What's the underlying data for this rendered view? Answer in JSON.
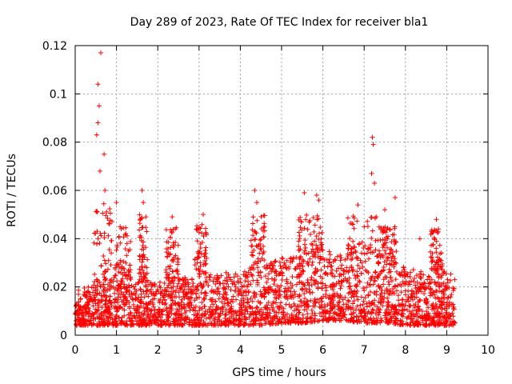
{
  "chart_data": {
    "type": "scatter",
    "title": "Day 289 of 2023, Rate Of TEC Index for receiver bla1",
    "xlabel": "GPS time / hours",
    "ylabel": "ROTI / TECUs",
    "xlim": [
      0,
      10
    ],
    "ylim": [
      0,
      0.12
    ],
    "xticks": [
      0,
      1,
      2,
      3,
      4,
      5,
      6,
      7,
      8,
      9,
      10
    ],
    "yticks": [
      0,
      0.02,
      0.04,
      0.06,
      0.08,
      0.1,
      0.12
    ],
    "xtick_labels": [
      "0",
      "1",
      "2",
      "3",
      "4",
      "5",
      "6",
      "7",
      "8",
      "9",
      "10"
    ],
    "ytick_labels": [
      "0",
      "0.02",
      "0.04",
      "0.06",
      "0.08",
      "0.1",
      "0.12"
    ],
    "grid": true,
    "marker": "plus",
    "color": "#ff0000",
    "envelope": {
      "description": "approximate dense band of ROTI values over time (lower/upper of main cloud)",
      "x": [
        0.0,
        0.5,
        1.0,
        1.5,
        2.0,
        2.5,
        3.0,
        3.5,
        4.0,
        4.5,
        5.0,
        5.5,
        6.0,
        6.5,
        7.0,
        7.5,
        8.0,
        8.5,
        9.0,
        9.2
      ],
      "lower": [
        0.004,
        0.004,
        0.004,
        0.004,
        0.004,
        0.004,
        0.004,
        0.004,
        0.004,
        0.004,
        0.005,
        0.005,
        0.006,
        0.006,
        0.005,
        0.005,
        0.004,
        0.004,
        0.004,
        0.004
      ],
      "upper": [
        0.02,
        0.02,
        0.025,
        0.022,
        0.022,
        0.024,
        0.025,
        0.026,
        0.026,
        0.028,
        0.032,
        0.034,
        0.035,
        0.034,
        0.034,
        0.032,
        0.028,
        0.026,
        0.028,
        0.025
      ]
    },
    "peaks": [
      {
        "x": 0.62,
        "y": 0.117
      },
      {
        "x": 0.55,
        "y": 0.104
      },
      {
        "x": 0.58,
        "y": 0.095
      },
      {
        "x": 0.55,
        "y": 0.088
      },
      {
        "x": 0.52,
        "y": 0.083
      },
      {
        "x": 0.7,
        "y": 0.075
      },
      {
        "x": 0.6,
        "y": 0.068
      },
      {
        "x": 0.72,
        "y": 0.06
      },
      {
        "x": 1.0,
        "y": 0.055
      },
      {
        "x": 1.62,
        "y": 0.06
      },
      {
        "x": 1.65,
        "y": 0.055
      },
      {
        "x": 2.35,
        "y": 0.049
      },
      {
        "x": 3.1,
        "y": 0.05
      },
      {
        "x": 4.35,
        "y": 0.06
      },
      {
        "x": 4.4,
        "y": 0.055
      },
      {
        "x": 5.55,
        "y": 0.059
      },
      {
        "x": 5.85,
        "y": 0.058
      },
      {
        "x": 5.9,
        "y": 0.056
      },
      {
        "x": 6.85,
        "y": 0.054
      },
      {
        "x": 7.2,
        "y": 0.082
      },
      {
        "x": 7.22,
        "y": 0.079
      },
      {
        "x": 7.18,
        "y": 0.067
      },
      {
        "x": 7.25,
        "y": 0.063
      },
      {
        "x": 7.5,
        "y": 0.052
      },
      {
        "x": 7.75,
        "y": 0.057
      },
      {
        "x": 8.35,
        "y": 0.04
      },
      {
        "x": 8.75,
        "y": 0.048
      },
      {
        "x": 8.8,
        "y": 0.044
      }
    ],
    "spikes": [
      {
        "x_from": 0.45,
        "x_to": 0.9,
        "ymax": 0.055
      },
      {
        "x_from": 0.95,
        "x_to": 1.35,
        "ymax": 0.045
      },
      {
        "x_from": 1.55,
        "x_to": 1.75,
        "ymax": 0.05
      },
      {
        "x_from": 2.2,
        "x_to": 2.5,
        "ymax": 0.045
      },
      {
        "x_from": 2.9,
        "x_to": 3.2,
        "ymax": 0.046
      },
      {
        "x_from": 4.2,
        "x_to": 4.6,
        "ymax": 0.05
      },
      {
        "x_from": 5.4,
        "x_to": 6.0,
        "ymax": 0.05
      },
      {
        "x_from": 6.6,
        "x_to": 7.4,
        "ymax": 0.05
      },
      {
        "x_from": 7.4,
        "x_to": 7.8,
        "ymax": 0.045
      },
      {
        "x_from": 8.6,
        "x_to": 8.9,
        "ymax": 0.044
      }
    ],
    "time_range_hours": [
      0,
      9.2
    ]
  }
}
